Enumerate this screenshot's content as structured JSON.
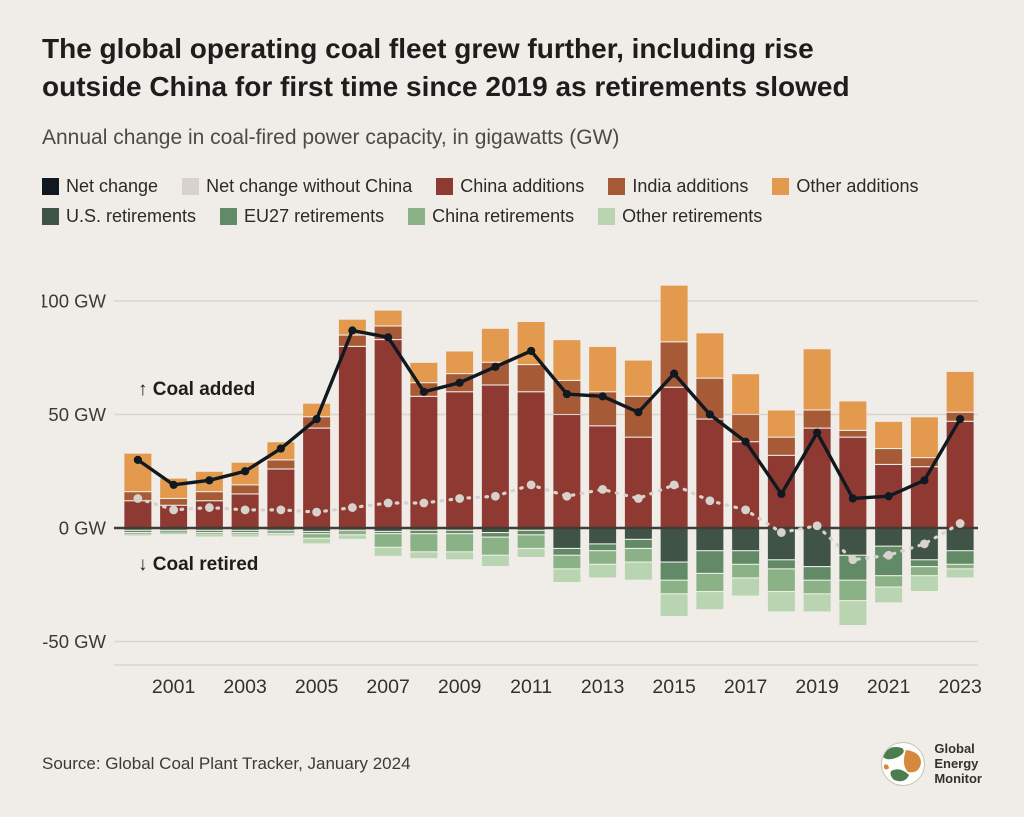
{
  "page": {
    "title_lines": [
      "The global operating coal fleet grew further, including rise",
      "outside China for first time since 2019 as retirements slowed"
    ],
    "subtitle": "Annual change in coal-fired power capacity, in gigawatts (GW)",
    "source": "Source: Global Coal Plant Tracker, January 2024",
    "logo_text": [
      "Global",
      "Energy",
      "Monitor"
    ]
  },
  "colors": {
    "background": "#f0ede8",
    "gridline": "#d9d5cd",
    "zero_line": "#403d38",
    "axis_text": "#3c3a36"
  },
  "chart_data": {
    "type": "bar",
    "stacked": true,
    "title": "Annual change in coal-fired power capacity, in gigawatts (GW)",
    "xlabel": "Year",
    "ylabel": "GW",
    "ylim": [
      -62,
      112
    ],
    "grid": "horizontal",
    "legend_position": "top",
    "annotations": {
      "added": "↑ Coal added",
      "retired": "↓ Coal retired"
    },
    "yticks": [
      {
        "value": 100,
        "label": "100 GW"
      },
      {
        "value": 50,
        "label": "50 GW"
      },
      {
        "value": 0,
        "label": "0 GW"
      },
      {
        "value": -50,
        "label": "-50 GW"
      }
    ],
    "categories": [
      2000,
      2001,
      2002,
      2003,
      2004,
      2005,
      2006,
      2007,
      2008,
      2009,
      2010,
      2011,
      2012,
      2013,
      2014,
      2015,
      2016,
      2017,
      2018,
      2019,
      2020,
      2021,
      2022,
      2023
    ],
    "xtick_labels": [
      "2001",
      "2003",
      "2005",
      "2007",
      "2009",
      "2011",
      "2013",
      "2015",
      "2017",
      "2019",
      "2021",
      "2023"
    ],
    "bar_series": [
      {
        "name": "China additions",
        "color": "#8e3a33",
        "values": [
          12,
          10,
          12,
          15,
          26,
          44,
          80,
          83,
          58,
          60,
          63,
          60,
          50,
          45,
          40,
          62,
          48,
          38,
          32,
          44,
          40,
          28,
          27,
          47
        ]
      },
      {
        "name": "India additions",
        "color": "#a75a36",
        "values": [
          4,
          3,
          4,
          4,
          4,
          5,
          5,
          6,
          6,
          8,
          10,
          12,
          15,
          15,
          18,
          20,
          18,
          12,
          8,
          8,
          3,
          7,
          4,
          4
        ]
      },
      {
        "name": "Other additions",
        "color": "#e39a4e",
        "values": [
          17,
          9,
          9,
          10,
          8,
          6,
          7,
          7,
          9,
          10,
          15,
          19,
          18,
          20,
          16,
          25,
          20,
          18,
          12,
          27,
          13,
          12,
          18,
          18
        ]
      },
      {
        "name": "U.S. retirements",
        "color": "#3f5447",
        "values": [
          -1,
          -1,
          -1,
          -1,
          -1,
          -1.5,
          -1,
          -1.5,
          -1,
          -1,
          -2,
          -1,
          -9,
          -7,
          -5,
          -15,
          -10,
          -10,
          -14,
          -17,
          -12,
          -8,
          -14,
          -10
        ]
      },
      {
        "name": "EU27 retirements",
        "color": "#628a66",
        "values": [
          -1,
          -0.5,
          -1,
          -1,
          -0.5,
          -1,
          -0.5,
          -1,
          -1.5,
          -1.5,
          -2,
          -2,
          -3,
          -3,
          -4,
          -8,
          -10,
          -6,
          -4,
          -6,
          -11,
          -13,
          -3,
          -6
        ]
      },
      {
        "name": "China retirements",
        "color": "#8bb286",
        "values": [
          -0.5,
          -0.5,
          -0.5,
          -0.5,
          -1,
          -2,
          -1.5,
          -6,
          -8,
          -8,
          -8,
          -6,
          -6,
          -6,
          -6,
          -6,
          -8,
          -6,
          -10,
          -6,
          -9,
          -5,
          -4,
          -2
        ]
      },
      {
        "name": "Other retirements",
        "color": "#b9d4b0",
        "values": [
          -1,
          -1,
          -1.5,
          -1.5,
          -1,
          -2.5,
          -2,
          -4,
          -3,
          -3.5,
          -5,
          -4,
          -6,
          -6,
          -8,
          -10,
          -8,
          -8,
          -9,
          -8,
          -11,
          -7,
          -7,
          -4
        ]
      }
    ],
    "line_series": [
      {
        "name": "Net change",
        "color": "#101820",
        "style": "solid",
        "values": [
          30,
          19,
          21,
          25,
          35,
          48,
          87,
          84,
          60,
          64,
          71,
          78,
          59,
          58,
          51,
          68,
          50,
          38,
          15,
          42,
          13,
          14,
          21,
          48
        ]
      },
      {
        "name": "Net change without China",
        "color": "#d7d2cb",
        "style": "dashed",
        "values": [
          13,
          8,
          9,
          8,
          8,
          7,
          9,
          11,
          11,
          13,
          14,
          19,
          14,
          17,
          13,
          19,
          12,
          8,
          -2,
          1,
          -14,
          -12,
          -7,
          2
        ]
      }
    ],
    "legend_rows": [
      [
        {
          "label": "Net change",
          "color": "#101820"
        },
        {
          "label": "Net change without China",
          "color": "#d7d2cb"
        },
        {
          "label": "China additions",
          "color": "#8e3a33"
        },
        {
          "label": "India additions",
          "color": "#a75a36"
        },
        {
          "label": "Other additions",
          "color": "#e39a4e"
        }
      ],
      [
        {
          "label": "U.S. retirements",
          "color": "#3f5447"
        },
        {
          "label": "EU27 retirements",
          "color": "#628a66"
        },
        {
          "label": "China retirements",
          "color": "#8bb286"
        },
        {
          "label": "Other retirements",
          "color": "#b9d4b0"
        }
      ]
    ]
  }
}
